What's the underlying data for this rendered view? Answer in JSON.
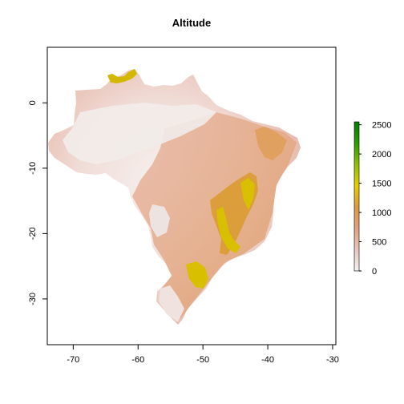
{
  "title": "Altitude",
  "x_axis": {
    "ticks": [
      "-70",
      "-60",
      "-50",
      "-40",
      "-30"
    ],
    "values": [
      -70,
      -60,
      -50,
      -40,
      -30
    ]
  },
  "y_axis": {
    "ticks": [
      "0",
      "-10",
      "-20",
      "-30"
    ],
    "values": [
      0,
      -10,
      -20,
      -30
    ]
  },
  "xlim": [
    -74,
    -29.5
  ],
  "ylim": [
    -37,
    8.5
  ],
  "legend": {
    "ticks": [
      "0",
      "500",
      "1000",
      "1500",
      "2000",
      "2500"
    ],
    "values": [
      0,
      500,
      1000,
      1500,
      2000,
      2500
    ],
    "range": [
      0,
      2550
    ],
    "colors": [
      "#f2f2f2",
      "#e8c4b8",
      "#e0a080",
      "#dc9a3c",
      "#e4cc00",
      "#8ec000",
      "#2a9a00",
      "#007f00"
    ]
  },
  "colors": {
    "lowland": "#f3ebe9",
    "midland": "#e9b7ab",
    "highland": "#dea062",
    "peaks": "#d8c000"
  }
}
